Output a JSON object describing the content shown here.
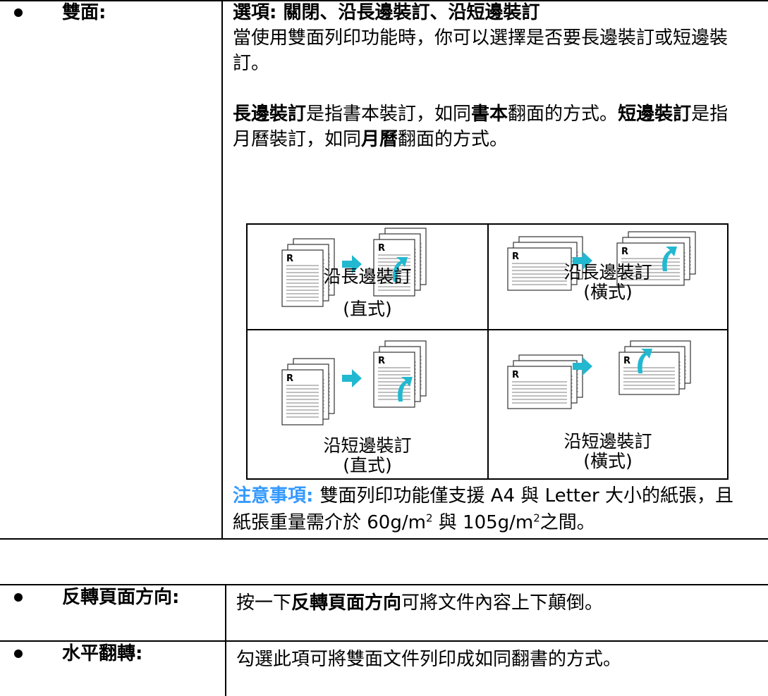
{
  "duplex": {
    "label": "雙面:",
    "options": "選項: 關閉、沿長邊裝訂、沿短邊裝訂",
    "description": "當使用雙面列印功能時，你可以選擇是否要長邊裝訂或短邊裝訂。",
    "binding_text": [
      {
        "text": "長邊裝訂",
        "bold": true
      },
      {
        "text": "是指書本裝訂，如同"
      },
      {
        "text": "書本",
        "bold": true
      },
      {
        "text": "翻面的方式。"
      },
      {
        "text": "短邊裝訂",
        "bold": true
      },
      {
        "text": "是指月曆裝訂，如同"
      },
      {
        "text": "月曆",
        "bold": true
      },
      {
        "text": "翻面的方式。"
      }
    ],
    "icon_letter": "R",
    "illustrations": [
      {
        "caption": "沿長邊裝訂",
        "orientation": "(直式)"
      },
      {
        "caption": "沿長邊裝訂",
        "orientation": "(橫式)"
      },
      {
        "caption": "沿短邊裝訂",
        "orientation": "(直式)"
      },
      {
        "caption": "沿短邊裝訂",
        "orientation": "(橫式)"
      }
    ],
    "note": [
      {
        "text": "注意事項: ",
        "style": "note"
      },
      {
        "text": "雙面列印功能僅支援 A4 與 Letter 大小的紙張，且紙張重量需介於 60g/m"
      },
      {
        "text": "2",
        "style": "sup"
      },
      {
        "text": " 與 105g/m"
      },
      {
        "text": "2",
        "style": "sup"
      },
      {
        "text": "之間。"
      }
    ]
  },
  "settings": [
    {
      "label": "反轉頁面方向:",
      "text": [
        {
          "text": "按一下"
        },
        {
          "text": "反轉頁面方向",
          "bold": true
        },
        {
          "text": "可將文件內容上下顛倒。"
        }
      ]
    },
    {
      "label": "水平翻轉:",
      "text": [
        {
          "text": "勾選此項可將雙面文件列印成如同翻書的方式。"
        }
      ]
    }
  ]
}
